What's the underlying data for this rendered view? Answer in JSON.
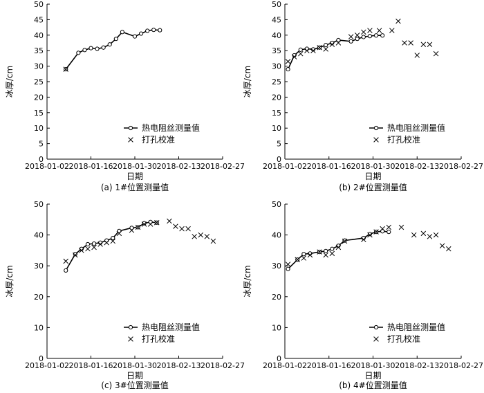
{
  "chart_data": [
    {
      "type": "line",
      "caption": "(a) 1#位置测量值",
      "xlabel": "日期",
      "ylabel": "冰厚/cm",
      "xlim": [
        "2018-01-02",
        "2018-02-27"
      ],
      "ylim": [
        0,
        50
      ],
      "xticks": [
        "2018-01-02",
        "2018-01-16",
        "2018-01-30",
        "2018-02-13",
        "2018-02-27"
      ],
      "yticks": [
        "0",
        "5",
        "10",
        "15",
        "20",
        "25",
        "30",
        "35",
        "40",
        "45",
        "50"
      ],
      "legend_position": "bottom-right",
      "series": [
        {
          "name": "热电阻丝测量值",
          "style": "line-circle",
          "color": "#000000",
          "points": [
            [
              "2018-01-08",
              29.0
            ],
            [
              "2018-01-12",
              34.3
            ],
            [
              "2018-01-14",
              35.2
            ],
            [
              "2018-01-16",
              35.8
            ],
            [
              "2018-01-18",
              35.6
            ],
            [
              "2018-01-20",
              36.0
            ],
            [
              "2018-01-22",
              37.0
            ],
            [
              "2018-01-24",
              38.8
            ],
            [
              "2018-01-26",
              41.0
            ],
            [
              "2018-01-30",
              39.6
            ],
            [
              "2018-02-01",
              40.5
            ],
            [
              "2018-02-03",
              41.4
            ],
            [
              "2018-02-05",
              41.7
            ],
            [
              "2018-02-07",
              41.6
            ]
          ]
        },
        {
          "name": "打孔校准",
          "style": "cross",
          "color": "#000000",
          "points": [
            [
              "2018-01-08",
              29.0
            ]
          ]
        }
      ]
    },
    {
      "type": "line",
      "caption": "(b) 2#位置测量值",
      "xlabel": "日期",
      "ylabel": "冰厚/cm",
      "xlim": [
        "2018-01-02",
        "2018-02-27"
      ],
      "ylim": [
        0,
        50
      ],
      "xticks": [
        "2018-01-02",
        "2018-01-16",
        "2018-01-30",
        "2018-02-13",
        "2018-02-27"
      ],
      "yticks": [
        "0",
        "5",
        "10",
        "15",
        "20",
        "25",
        "30",
        "35",
        "40",
        "45",
        "50"
      ],
      "legend_position": "bottom-right",
      "series": [
        {
          "name": "热电阻丝测量值",
          "style": "line-circle",
          "color": "#000000",
          "points": [
            [
              "2018-01-03",
              29.0
            ],
            [
              "2018-01-05",
              33.5
            ],
            [
              "2018-01-07",
              35.3
            ],
            [
              "2018-01-09",
              35.6
            ],
            [
              "2018-01-11",
              35.4
            ],
            [
              "2018-01-13",
              36.0
            ],
            [
              "2018-01-15",
              36.8
            ],
            [
              "2018-01-17",
              37.5
            ],
            [
              "2018-01-19",
              38.4
            ],
            [
              "2018-01-23",
              38.0
            ],
            [
              "2018-01-25",
              38.8
            ],
            [
              "2018-01-27",
              39.4
            ],
            [
              "2018-01-29",
              39.7
            ],
            [
              "2018-01-31",
              39.9
            ],
            [
              "2018-02-02",
              39.9
            ]
          ]
        },
        {
          "name": "打孔校准",
          "style": "cross",
          "color": "#000000",
          "points": [
            [
              "2018-01-03",
              31.5
            ],
            [
              "2018-01-05",
              33.0
            ],
            [
              "2018-01-07",
              34.0
            ],
            [
              "2018-01-09",
              35.0
            ],
            [
              "2018-01-11",
              35.0
            ],
            [
              "2018-01-13",
              36.0
            ],
            [
              "2018-01-15",
              35.5
            ],
            [
              "2018-01-17",
              37.0
            ],
            [
              "2018-01-19",
              37.5
            ],
            [
              "2018-01-23",
              39.5
            ],
            [
              "2018-01-25",
              40.0
            ],
            [
              "2018-01-27",
              41.0
            ],
            [
              "2018-01-29",
              41.5
            ],
            [
              "2018-02-01",
              41.5
            ],
            [
              "2018-02-05",
              41.5
            ],
            [
              "2018-02-07",
              44.5
            ],
            [
              "2018-02-09",
              37.5
            ],
            [
              "2018-02-11",
              37.5
            ],
            [
              "2018-02-13",
              33.5
            ],
            [
              "2018-02-15",
              37.0
            ],
            [
              "2018-02-17",
              37.0
            ],
            [
              "2018-02-19",
              34.0
            ]
          ]
        }
      ]
    },
    {
      "type": "line",
      "caption": "(c) 3#位置测量值",
      "xlabel": "日期",
      "ylabel": "冰厚/cm",
      "xlim": [
        "2018-01-02",
        "2018-02-27"
      ],
      "ylim": [
        0,
        50
      ],
      "xticks": [
        "2018-01-02",
        "2018-01-16",
        "2018-01-30",
        "2018-02-13",
        "2018-02-27"
      ],
      "yticks": [
        "0",
        "10",
        "20",
        "30",
        "40",
        "50"
      ],
      "legend_position": "bottom-right",
      "series": [
        {
          "name": "热电阻丝测量值",
          "style": "line-circle",
          "color": "#000000",
          "points": [
            [
              "2018-01-08",
              28.5
            ],
            [
              "2018-01-11",
              33.8
            ],
            [
              "2018-01-13",
              35.5
            ],
            [
              "2018-01-15",
              37.0
            ],
            [
              "2018-01-17",
              37.2
            ],
            [
              "2018-01-19",
              37.5
            ],
            [
              "2018-01-21",
              38.2
            ],
            [
              "2018-01-23",
              39.0
            ],
            [
              "2018-01-25",
              41.3
            ],
            [
              "2018-01-29",
              42.3
            ],
            [
              "2018-01-31",
              42.5
            ],
            [
              "2018-02-02",
              43.8
            ],
            [
              "2018-02-04",
              44.2
            ],
            [
              "2018-02-06",
              44.0
            ]
          ]
        },
        {
          "name": "打孔校准",
          "style": "cross",
          "color": "#000000",
          "points": [
            [
              "2018-01-08",
              31.5
            ],
            [
              "2018-01-11",
              33.5
            ],
            [
              "2018-01-13",
              35.0
            ],
            [
              "2018-01-15",
              35.5
            ],
            [
              "2018-01-17",
              36.0
            ],
            [
              "2018-01-19",
              37.0
            ],
            [
              "2018-01-21",
              37.5
            ],
            [
              "2018-01-23",
              38.0
            ],
            [
              "2018-01-25",
              40.5
            ],
            [
              "2018-01-29",
              41.5
            ],
            [
              "2018-01-31",
              42.5
            ],
            [
              "2018-02-02",
              43.5
            ],
            [
              "2018-02-04",
              43.5
            ],
            [
              "2018-02-06",
              44.0
            ],
            [
              "2018-02-10",
              44.5
            ],
            [
              "2018-02-12",
              42.8
            ],
            [
              "2018-02-14",
              42.0
            ],
            [
              "2018-02-16",
              42.0
            ],
            [
              "2018-02-18",
              39.5
            ],
            [
              "2018-02-20",
              40.0
            ],
            [
              "2018-02-22",
              39.5
            ],
            [
              "2018-02-24",
              38.0
            ]
          ]
        }
      ]
    },
    {
      "type": "line",
      "caption": "(b) 4#位置测量值",
      "xlabel": "日期",
      "ylabel": "冰厚/cm",
      "xlim": [
        "2018-01-02",
        "2018-02-27"
      ],
      "ylim": [
        0,
        50
      ],
      "xticks": [
        "2018-01-02",
        "2018-01-16",
        "2018-01-30",
        "2018-02-13",
        "2018-02-27"
      ],
      "yticks": [
        "0",
        "10",
        "20",
        "30",
        "40",
        "50"
      ],
      "legend_position": "bottom-right",
      "series": [
        {
          "name": "热电阻丝测量值",
          "style": "line-circle",
          "color": "#000000",
          "points": [
            [
              "2018-01-03",
              29.0
            ],
            [
              "2018-01-06",
              32.0
            ],
            [
              "2018-01-08",
              33.8
            ],
            [
              "2018-01-10",
              34.0
            ],
            [
              "2018-01-13",
              34.5
            ],
            [
              "2018-01-15",
              34.8
            ],
            [
              "2018-01-17",
              35.5
            ],
            [
              "2018-01-19",
              36.5
            ],
            [
              "2018-01-21",
              38.2
            ],
            [
              "2018-01-27",
              39.0
            ],
            [
              "2018-01-29",
              40.3
            ],
            [
              "2018-01-31",
              41.0
            ],
            [
              "2018-02-02",
              41.2
            ],
            [
              "2018-02-04",
              41.0
            ]
          ]
        },
        {
          "name": "打孔校准",
          "style": "cross",
          "color": "#000000",
          "points": [
            [
              "2018-01-03",
              30.5
            ],
            [
              "2018-01-06",
              32.0
            ],
            [
              "2018-01-08",
              32.5
            ],
            [
              "2018-01-10",
              33.5
            ],
            [
              "2018-01-13",
              34.5
            ],
            [
              "2018-01-15",
              33.5
            ],
            [
              "2018-01-17",
              34.0
            ],
            [
              "2018-01-19",
              36.0
            ],
            [
              "2018-01-21",
              38.0
            ],
            [
              "2018-01-27",
              38.5
            ],
            [
              "2018-01-29",
              40.0
            ],
            [
              "2018-01-31",
              41.0
            ],
            [
              "2018-02-02",
              42.0
            ],
            [
              "2018-02-04",
              42.5
            ],
            [
              "2018-02-08",
              42.5
            ],
            [
              "2018-02-12",
              40.0
            ],
            [
              "2018-02-15",
              40.5
            ],
            [
              "2018-02-17",
              39.5
            ],
            [
              "2018-02-19",
              40.0
            ],
            [
              "2018-02-21",
              36.5
            ],
            [
              "2018-02-23",
              35.5
            ]
          ]
        }
      ]
    }
  ]
}
